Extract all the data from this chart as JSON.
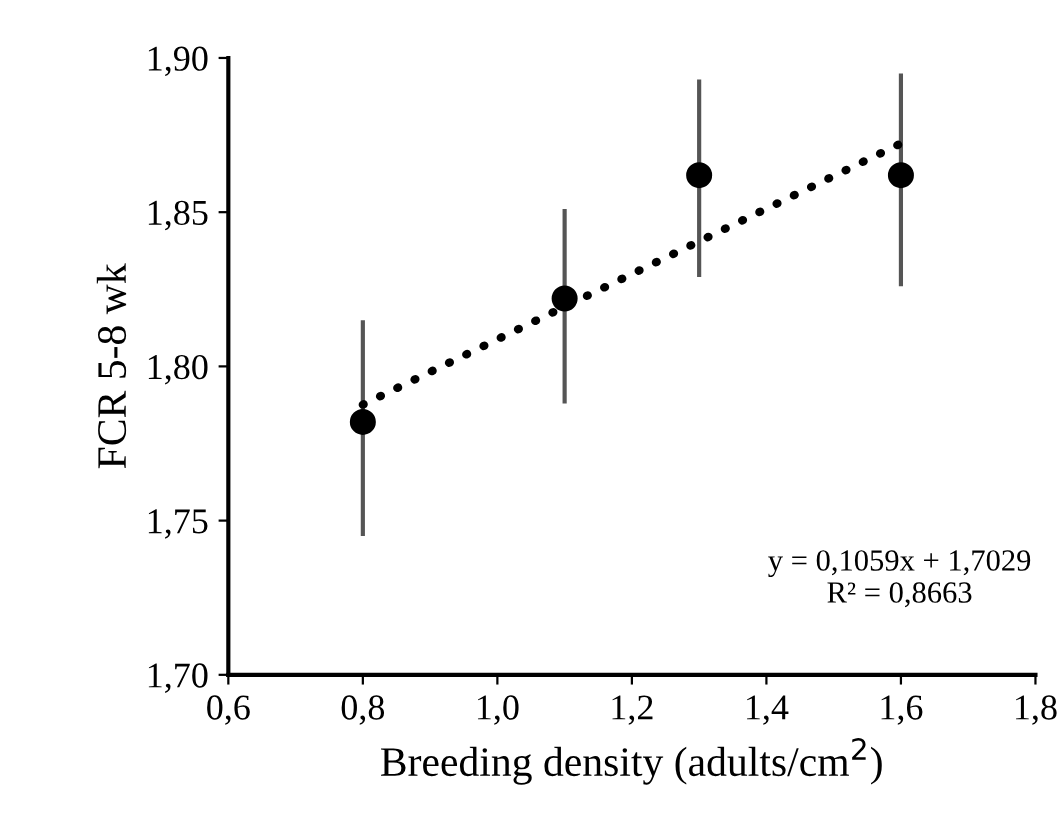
{
  "chart_data": {
    "type": "scatter",
    "xlabel": "Breeding density (adults/cm$^{2}$)",
    "ylabel": "FCR 5-8 wk",
    "x": [
      0.8,
      1.1,
      1.3,
      1.6
    ],
    "series": [
      {
        "color": "#000000",
        "values": [
          1.782,
          1.822,
          1.862,
          1.862
        ],
        "errors": [
          [
            1.745,
            1.815
          ],
          [
            1.788,
            1.851
          ],
          [
            1.829,
            1.893
          ],
          [
            1.826,
            1.895
          ]
        ],
        "marker": "circle"
      },
      {
        "type": "line",
        "color": "#000000",
        "x": [
          0.8,
          1.6
        ],
        "values": [
          1.7876,
          1.8723
        ],
        "line_style": "dotted",
        "marker": "none"
      }
    ],
    "xlim": [
      0.6,
      1.8
    ],
    "xticks": [
      {
        "value": 0.6,
        "label": "0,6"
      },
      {
        "value": 0.8,
        "label": "0,8"
      },
      {
        "value": 1.0,
        "label": "1,0"
      },
      {
        "value": 1.2,
        "label": "1,2"
      },
      {
        "value": 1.4,
        "label": "1,4"
      },
      {
        "value": 1.6,
        "label": "1,6"
      },
      {
        "value": 1.8,
        "label": "1,8"
      }
    ],
    "ylim": [
      1.7,
      1.9
    ],
    "yticks": [
      {
        "value": 1.7,
        "label": "1,70"
      },
      {
        "value": 1.75,
        "label": "1,75"
      },
      {
        "value": 1.8,
        "label": "1,80"
      },
      {
        "value": 1.85,
        "label": "1,85"
      },
      {
        "value": 1.9,
        "label": "1,90"
      }
    ],
    "annotations": [
      "y = 0,1059x + 1,7029",
      "R² = 0,8663"
    ],
    "grid": false,
    "legend": false
  }
}
